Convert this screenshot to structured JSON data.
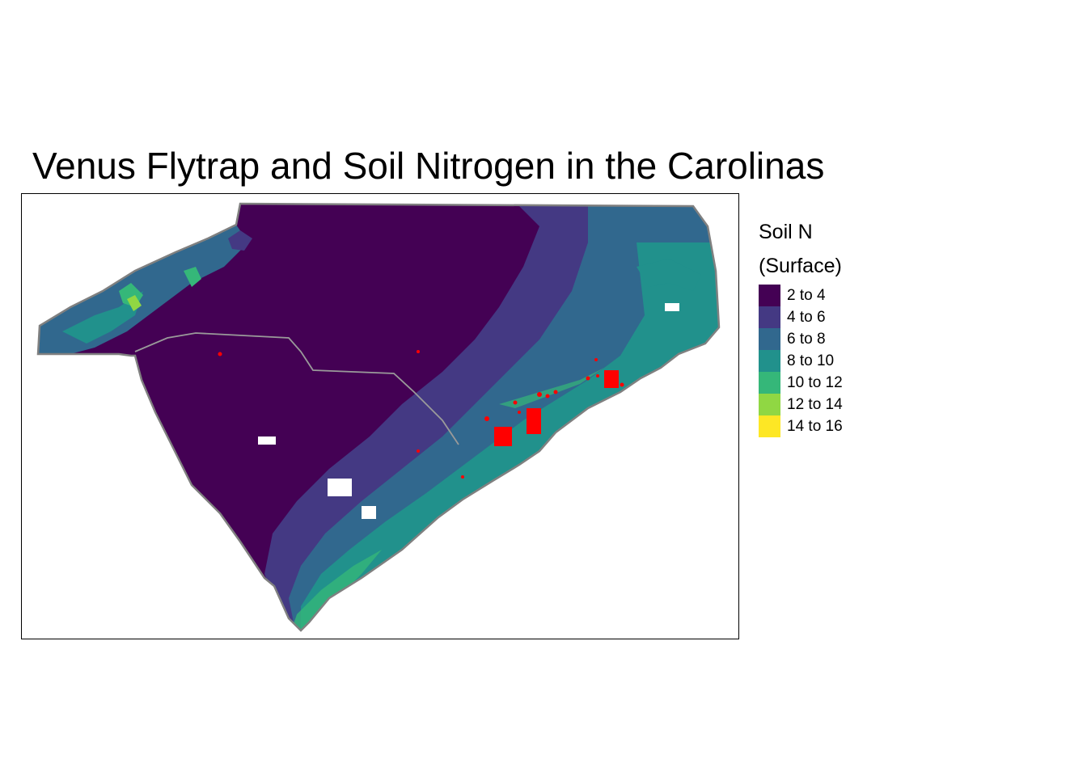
{
  "title": "Venus Flytrap and Soil Nitrogen in the Carolinas",
  "legend": {
    "title_line1": "Soil N",
    "title_line2": "(Surface)",
    "items": [
      {
        "label": "2 to 4",
        "color": "#440154"
      },
      {
        "label": "4 to 6",
        "color": "#443983"
      },
      {
        "label": "6 to 8",
        "color": "#31688e"
      },
      {
        "label": "8 to 10",
        "color": "#21918c"
      },
      {
        "label": "10 to 12",
        "color": "#35b779"
      },
      {
        "label": "12 to 14",
        "color": "#90d743"
      },
      {
        "label": "14 to 16",
        "color": "#fde725"
      }
    ]
  },
  "colors": {
    "state_border": "#808080",
    "occurrence": "#ff0000"
  }
}
